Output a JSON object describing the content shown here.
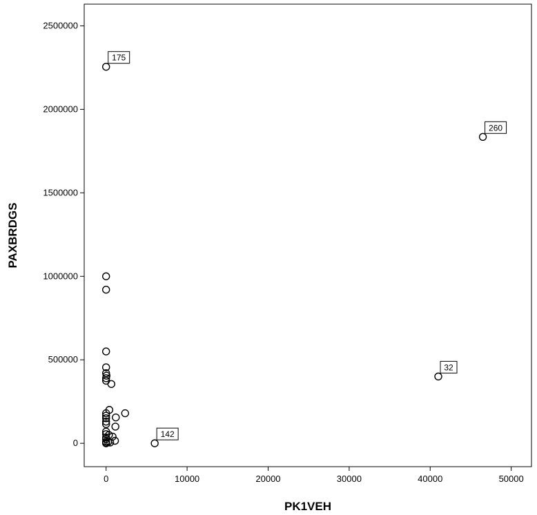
{
  "chart_data": {
    "type": "scatter",
    "title": "",
    "xlabel": "PK1VEH",
    "ylabel": "PAXBRDGS",
    "xlim": [
      -2700,
      52500
    ],
    "ylim": [
      -140000,
      2630000
    ],
    "xticks": [
      0,
      10000,
      20000,
      30000,
      40000,
      50000
    ],
    "yticks": [
      0,
      500000,
      1000000,
      1500000,
      2000000,
      2500000
    ],
    "xtick_labels": [
      "0",
      "10000",
      "20000",
      "30000",
      "40000",
      "50000"
    ],
    "ytick_labels": [
      "0",
      "500000",
      "1000000",
      "1500000",
      "2000000",
      "2500000"
    ],
    "grid": false,
    "marker": "open-circle",
    "points": [
      {
        "x": 0,
        "y": 2255000,
        "label": "175"
      },
      {
        "x": 46500,
        "y": 1835000,
        "label": "260"
      },
      {
        "x": 41000,
        "y": 400000,
        "label": "32"
      },
      {
        "x": 6000,
        "y": 0,
        "label": "142"
      },
      {
        "x": 0,
        "y": 1000000
      },
      {
        "x": 0,
        "y": 920000
      },
      {
        "x": 0,
        "y": 550000
      },
      {
        "x": 0,
        "y": 455000
      },
      {
        "x": 0,
        "y": 420000
      },
      {
        "x": 50,
        "y": 405000
      },
      {
        "x": 0,
        "y": 390000
      },
      {
        "x": 0,
        "y": 375000
      },
      {
        "x": 650,
        "y": 355000
      },
      {
        "x": 400,
        "y": 200000
      },
      {
        "x": 2350,
        "y": 180000
      },
      {
        "x": 0,
        "y": 180000
      },
      {
        "x": 0,
        "y": 165000
      },
      {
        "x": 1200,
        "y": 155000
      },
      {
        "x": 0,
        "y": 150000
      },
      {
        "x": 0,
        "y": 130000
      },
      {
        "x": 0,
        "y": 115000
      },
      {
        "x": 1150,
        "y": 100000
      },
      {
        "x": 0,
        "y": 70000
      },
      {
        "x": 0,
        "y": 55000
      },
      {
        "x": 350,
        "y": 50000
      },
      {
        "x": 800,
        "y": 40000
      },
      {
        "x": 0,
        "y": 35000
      },
      {
        "x": 0,
        "y": 25000
      },
      {
        "x": 1100,
        "y": 15000
      },
      {
        "x": 0,
        "y": 10000
      },
      {
        "x": 250,
        "y": 8000
      },
      {
        "x": 500,
        "y": 5000
      },
      {
        "x": 0,
        "y": 3000
      },
      {
        "x": 0,
        "y": 0
      }
    ]
  }
}
